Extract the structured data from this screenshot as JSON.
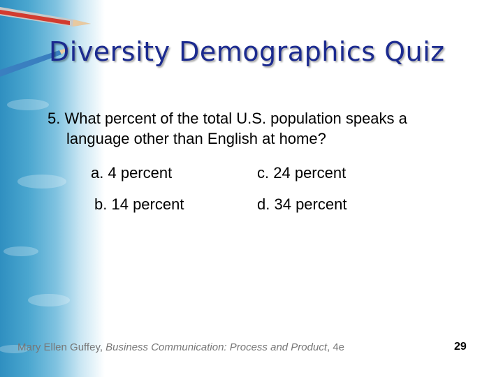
{
  "slide": {
    "title": "Diversity Demographics Quiz",
    "question": {
      "number": "5.",
      "line1": "What percent of the total U.S. population speaks a",
      "line2": "language other than English at home?"
    },
    "options": [
      {
        "letter": "a.",
        "text": "4 percent"
      },
      {
        "letter": "b.",
        "text": "14 percent"
      },
      {
        "letter": "c.",
        "text": "24 percent"
      },
      {
        "letter": "d.",
        "text": "34 percent"
      }
    ],
    "footer": {
      "author": "Mary Ellen Guffey,",
      "book": "Business Communication: Process and Product",
      "edition": ", 4e"
    },
    "page_number": "29"
  }
}
